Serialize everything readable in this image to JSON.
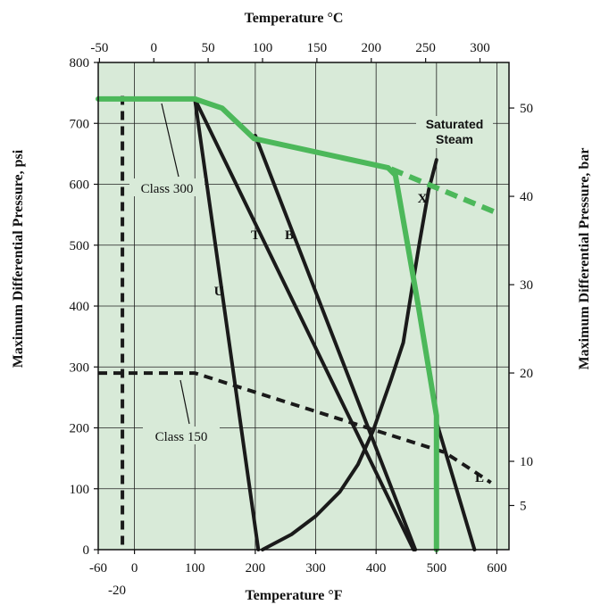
{
  "chart_data": {
    "type": "line",
    "title": "",
    "x_bottom": {
      "label": "Temperature °F",
      "range": [
        -60,
        620
      ],
      "ticks": [
        -60,
        0,
        100,
        200,
        300,
        400,
        500,
        600
      ],
      "tick_labels": [
        "-60",
        "0",
        "100",
        "200",
        "300",
        "400",
        "500",
        "600"
      ],
      "extra_label": "-20"
    },
    "x_top": {
      "label": "Temperature °C",
      "ticks": [
        -50,
        0,
        50,
        100,
        150,
        200,
        250,
        300
      ],
      "tick_labels": [
        "-50",
        "0",
        "50",
        "100",
        "150",
        "200",
        "250",
        "300"
      ]
    },
    "y_left": {
      "label": "Maximum Differential Pressure, psi",
      "range": [
        0,
        800
      ],
      "ticks": [
        0,
        100,
        200,
        300,
        400,
        500,
        600,
        700,
        800
      ],
      "tick_labels": [
        "0",
        "100",
        "200",
        "300",
        "400",
        "500",
        "600",
        "700",
        "800"
      ]
    },
    "y_right": {
      "label": "Maximum Differential Pressure, bar",
      "ticks": [
        5,
        10,
        20,
        30,
        40,
        50
      ],
      "tick_labels": [
        "5",
        "10",
        "20",
        "30",
        "40",
        "50"
      ]
    },
    "grid": true,
    "background_color": "#d8ead8",
    "series": [
      {
        "name": "Class 300",
        "color": "#4cb85a",
        "style": "solid",
        "width": 6,
        "points": [
          [
            -60,
            740
          ],
          [
            100,
            740
          ],
          [
            145,
            725
          ],
          [
            198,
            675
          ],
          [
            420,
            627
          ],
          [
            432,
            615
          ],
          [
            470,
            400
          ],
          [
            500,
            220
          ],
          [
            500,
            0
          ]
        ]
      },
      {
        "name": "",
        "color": "#4cb85a",
        "style": "dashed",
        "width": 6,
        "points": [
          [
            425,
            625
          ],
          [
            595,
            555
          ]
        ]
      },
      {
        "name": "Class 150",
        "color": "#1a1a1a",
        "style": "dashed",
        "width": 4,
        "points": [
          [
            -60,
            290
          ],
          [
            100,
            290
          ],
          [
            513,
            160
          ],
          [
            560,
            130
          ],
          [
            590,
            110
          ]
        ]
      },
      {
        "name": "",
        "color": "#1a1a1a",
        "style": "dashed",
        "width": 4,
        "points": [
          [
            -20,
            745
          ],
          [
            -20,
            0
          ]
        ]
      },
      {
        "name": "U",
        "color": "#1a1a1a",
        "style": "solid",
        "width": 4,
        "points": [
          [
            100,
            740
          ],
          [
            205,
            0
          ]
        ]
      },
      {
        "name": "T",
        "color": "#1a1a1a",
        "style": "solid",
        "width": 4,
        "points": [
          [
            100,
            740
          ],
          [
            462,
            0
          ]
        ]
      },
      {
        "name": "B",
        "color": "#1a1a1a",
        "style": "solid",
        "width": 4,
        "points": [
          [
            200,
            680
          ],
          [
            465,
            0
          ]
        ]
      },
      {
        "name": "L",
        "color": "#1a1a1a",
        "style": "solid",
        "width": 4,
        "points": [
          [
            500,
            210
          ],
          [
            563,
            0
          ]
        ]
      },
      {
        "name": "Saturated Steam",
        "color": "#1a1a1a",
        "style": "solid",
        "width": 4,
        "points": [
          [
            212,
            0
          ],
          [
            260,
            25
          ],
          [
            300,
            55
          ],
          [
            340,
            95
          ],
          [
            370,
            140
          ],
          [
            395,
            195
          ],
          [
            425,
            280
          ],
          [
            445,
            340
          ],
          [
            458,
            420
          ],
          [
            472,
            505
          ],
          [
            487,
            590
          ],
          [
            500,
            640
          ]
        ]
      }
    ],
    "annotations": {
      "class_300": "Class 300",
      "class_150": "Class 150",
      "saturated_steam_line1": "Saturated",
      "saturated_steam_line2": "Steam",
      "X": "X",
      "T": "T",
      "B": "B",
      "U": "U",
      "L": "L"
    }
  }
}
